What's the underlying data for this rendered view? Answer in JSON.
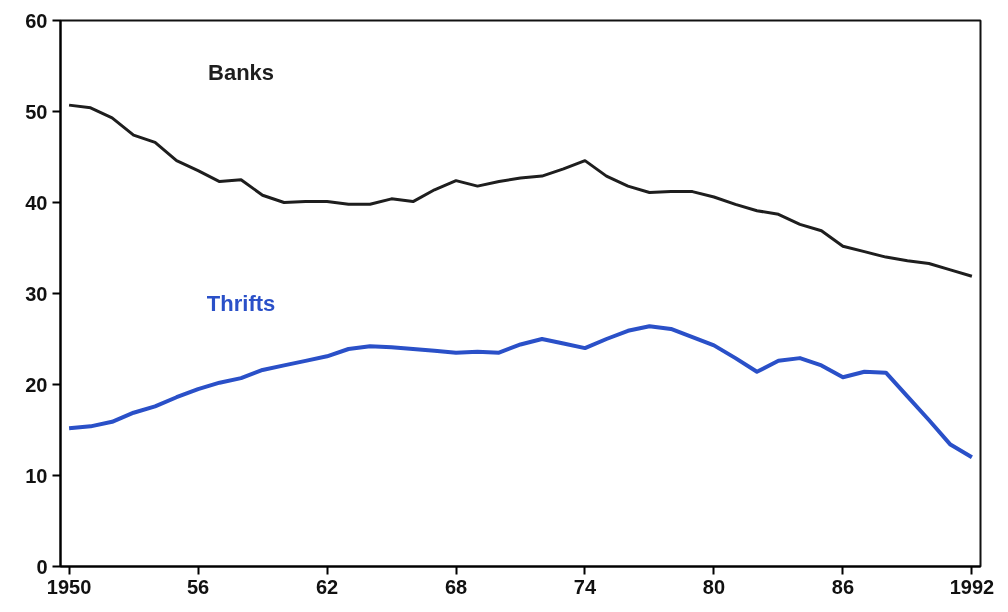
{
  "chart_data": {
    "type": "line",
    "x": [
      1950,
      1951,
      1952,
      1953,
      1954,
      1955,
      1956,
      1957,
      1958,
      1959,
      1960,
      1961,
      1962,
      1963,
      1964,
      1965,
      1966,
      1967,
      1968,
      1969,
      1970,
      1971,
      1972,
      1973,
      1974,
      1975,
      1976,
      1977,
      1978,
      1979,
      1980,
      1981,
      1982,
      1983,
      1984,
      1985,
      1986,
      1987,
      1988,
      1989,
      1990,
      1991,
      1992
    ],
    "series": [
      {
        "name": "Banks",
        "color": "#1e1e1e",
        "values": [
          50.7,
          50.4,
          49.3,
          47.4,
          46.6,
          44.6,
          43.5,
          42.3,
          42.5,
          40.8,
          40.0,
          40.1,
          40.1,
          39.8,
          39.8,
          40.4,
          40.1,
          41.4,
          42.4,
          41.8,
          42.3,
          42.7,
          42.9,
          43.7,
          44.6,
          42.9,
          41.8,
          41.1,
          41.2,
          41.2,
          40.6,
          39.8,
          39.1,
          38.7,
          37.6,
          36.9,
          35.2,
          34.6,
          34.0,
          33.6,
          33.3,
          32.6,
          31.9
        ]
      },
      {
        "name": "Thrifts",
        "color": "#2a50c8",
        "values": [
          15.2,
          15.4,
          15.9,
          16.9,
          17.6,
          18.6,
          19.5,
          20.2,
          20.7,
          21.6,
          22.1,
          22.6,
          23.1,
          23.9,
          24.2,
          24.1,
          23.9,
          23.7,
          23.5,
          23.6,
          23.5,
          24.4,
          25.0,
          24.5,
          24.0,
          25.0,
          25.9,
          26.4,
          26.1,
          25.2,
          24.3,
          22.9,
          21.4,
          22.6,
          22.9,
          22.1,
          20.8,
          21.4,
          21.3,
          18.7,
          16.1,
          13.4,
          12.0
        ]
      }
    ],
    "xlim": [
      1949.6,
      1992.4
    ],
    "xticks": [
      1950,
      {
        "value": 1956,
        "label": "56"
      },
      {
        "value": 1962,
        "label": "62"
      },
      {
        "value": 1968,
        "label": "68"
      },
      {
        "value": 1974,
        "label": "74"
      },
      {
        "value": 1980,
        "label": "80"
      },
      {
        "value": 1986,
        "label": "86"
      },
      1992
    ],
    "ylim": [
      0,
      60
    ],
    "yticks": [
      0,
      10,
      20,
      30,
      40,
      50,
      60
    ],
    "grid": false,
    "marker": "none",
    "line_style": "solid"
  }
}
